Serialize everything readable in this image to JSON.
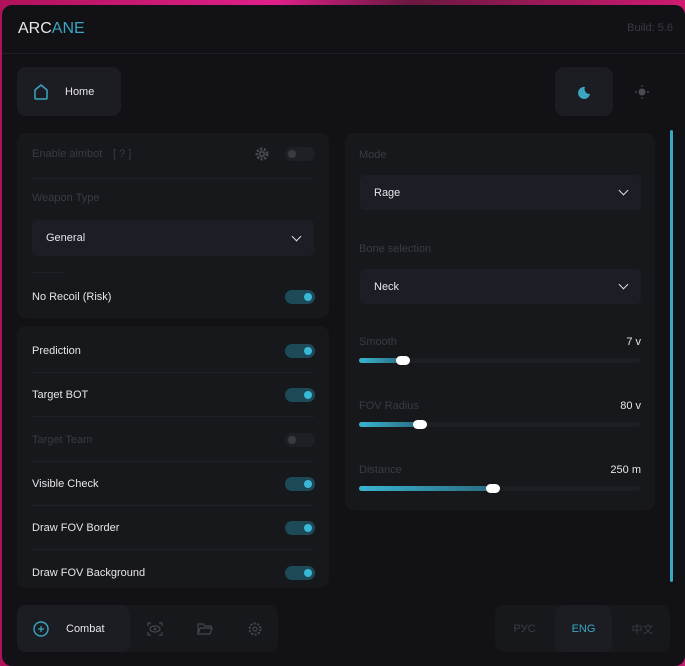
{
  "header": {
    "logo_a": "ARC",
    "logo_b": "ANE",
    "build": "Build: 5.6"
  },
  "nav": {
    "home": "Home",
    "home_icon": "home-icon",
    "theme_dark_icon": "moon-icon",
    "theme_light_icon": "sun-icon"
  },
  "left": {
    "enable_aimbot": "Enable aimbot",
    "help": "[ ? ]",
    "enable_aimbot_on": false,
    "weapon_type_label": "Weapon Type",
    "weapon_type": "General",
    "no_recoil": "No Recoil (Risk)",
    "no_recoil_on": true,
    "toggles": [
      {
        "label": "Prediction",
        "on": true
      },
      {
        "label": "Target BOT",
        "on": true
      },
      {
        "label": "Target Team",
        "on": false
      },
      {
        "label": "Visible Check",
        "on": true
      },
      {
        "label": "Draw FOV Border",
        "on": true
      },
      {
        "label": "Draw FOV Background",
        "on": true
      }
    ]
  },
  "right": {
    "mode_label": "Mode",
    "mode": "Rage",
    "bone_label": "Bone selection",
    "bone": "Neck",
    "sliders": [
      {
        "label": "Smooth",
        "value": "7 v",
        "fraction": 0.16
      },
      {
        "label": "FOV Radius",
        "value": "80 v",
        "fraction": 0.22
      },
      {
        "label": "Distance",
        "value": "250 m",
        "fraction": 0.48
      }
    ]
  },
  "footer": {
    "combat": "Combat",
    "tabs_icons": [
      "crosshair-icon",
      "eye-icon",
      "folder-icon",
      "gear-icon"
    ],
    "langs": [
      "РУС",
      "ENG",
      "中文"
    ],
    "active_lang": "ENG"
  },
  "colors": {
    "accent": "#3aa6c0",
    "bg": "#121216"
  }
}
